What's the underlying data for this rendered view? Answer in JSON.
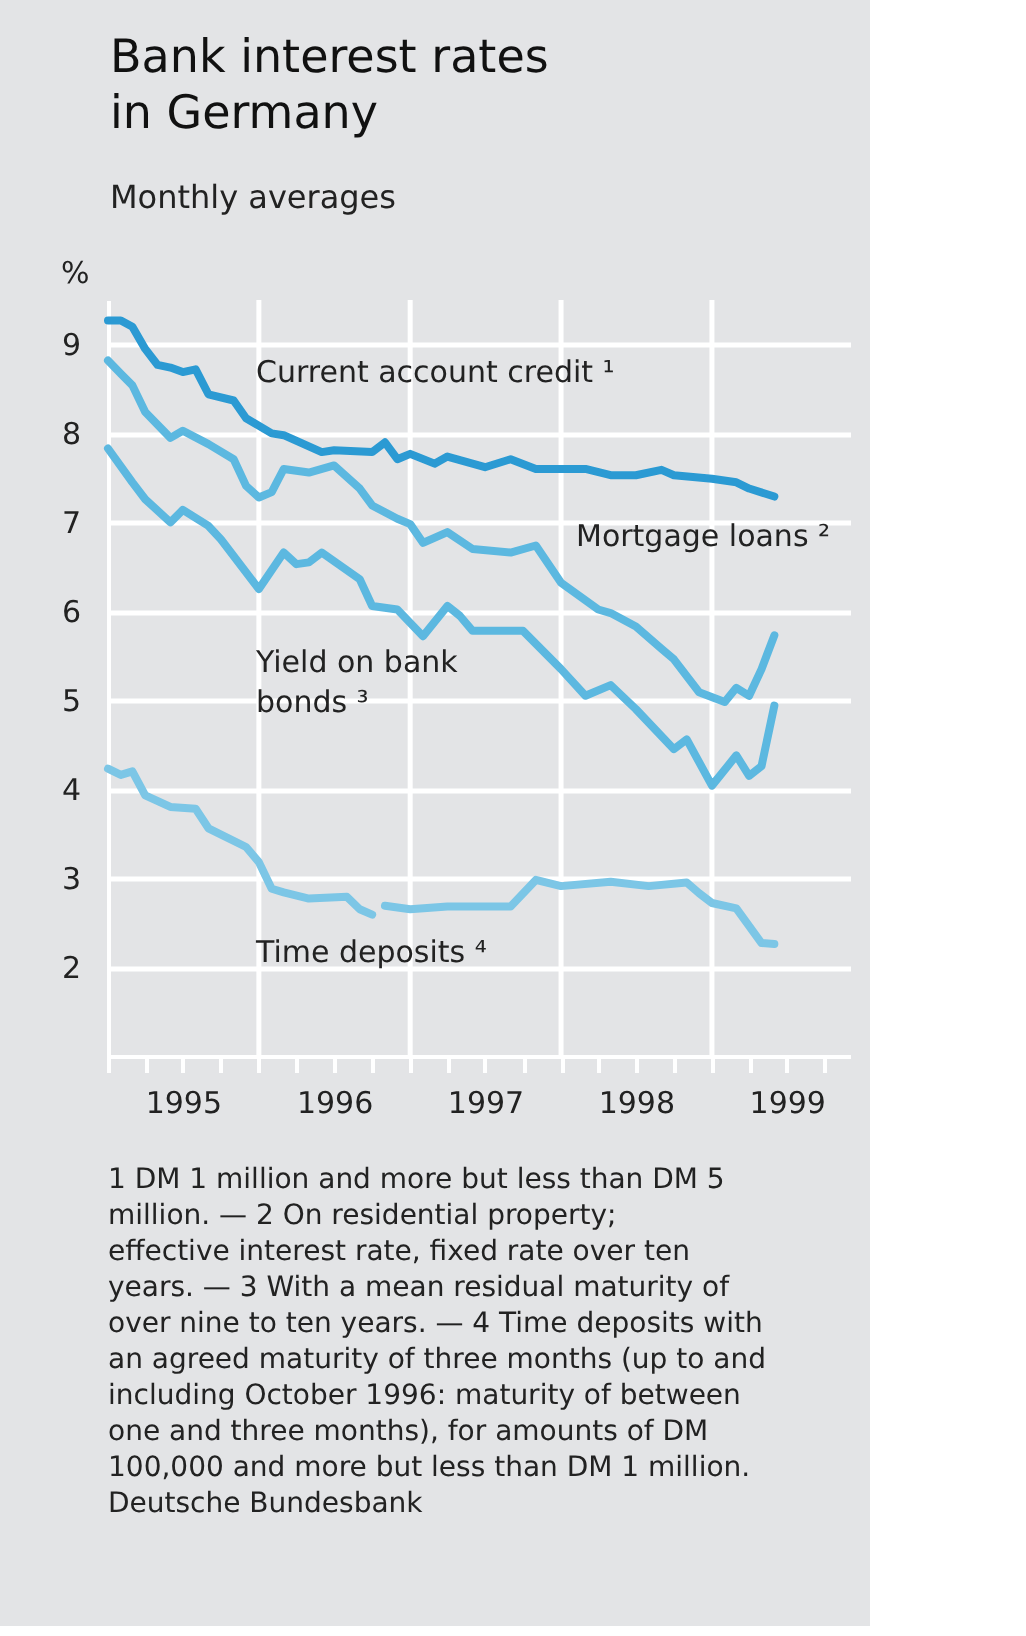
{
  "chart_data": {
    "type": "line",
    "title": "Bank interest rates in Germany",
    "subtitle": "Monthly averages",
    "ylabel": "%",
    "xlim": [
      "1995-01",
      "1999-12"
    ],
    "xticks": [
      {
        "value": "1995-01",
        "label": null
      },
      {
        "value": "1995-04",
        "label": null
      },
      {
        "value": "1995-07",
        "label": "1995"
      },
      {
        "value": "1995-10",
        "label": null
      },
      {
        "value": "1996-01",
        "label": null
      },
      {
        "value": "1996-04",
        "label": null
      },
      {
        "value": "1996-07",
        "label": "1996"
      },
      {
        "value": "1996-10",
        "label": null
      },
      {
        "value": "1997-01",
        "label": null
      },
      {
        "value": "1997-04",
        "label": null
      },
      {
        "value": "1997-07",
        "label": "1997"
      },
      {
        "value": "1997-10",
        "label": null
      },
      {
        "value": "1998-01",
        "label": null
      },
      {
        "value": "1998-04",
        "label": null
      },
      {
        "value": "1998-07",
        "label": "1998"
      },
      {
        "value": "1998-10",
        "label": null
      },
      {
        "value": "1999-01",
        "label": null
      },
      {
        "value": "1999-04",
        "label": null
      },
      {
        "value": "1999-07",
        "label": "1999"
      },
      {
        "value": "1999-10",
        "label": null
      }
    ],
    "ylim": [
      1,
      9.5
    ],
    "yticks": [
      2,
      3,
      4,
      5,
      6,
      7,
      8,
      9
    ],
    "grid": "y",
    "legend": false,
    "ref_lines": [
      {
        "axis": "x",
        "value": "1996-01",
        "label": null,
        "color": "#ffffff"
      },
      {
        "axis": "x",
        "value": "1997-01",
        "label": null,
        "color": "#ffffff"
      },
      {
        "axis": "x",
        "value": "1998-01",
        "label": null,
        "color": "#ffffff"
      },
      {
        "axis": "x",
        "value": "1999-01",
        "label": null,
        "color": "#ffffff"
      }
    ],
    "series": [
      {
        "name": "Current account credit ¹",
        "color": "#2b9ad3",
        "x": [
          "1995-01",
          "1995-02",
          "1995-03",
          "1995-04",
          "1995-05",
          "1995-06",
          "1995-07",
          "1995-08",
          "1995-09",
          "1995-11",
          "1995-12",
          "1996-02",
          "1996-03",
          "1996-06",
          "1996-07",
          "1996-10",
          "1996-11",
          "1996-12",
          "1997-01",
          "1997-03",
          "1997-04",
          "1997-07",
          "1997-09",
          "1997-11",
          "1998-03",
          "1998-05",
          "1998-07",
          "1998-09",
          "1998-10",
          "1999-01",
          "1999-03",
          "1999-04",
          "1999-06"
        ],
        "values": [
          9.27,
          9.27,
          9.2,
          8.95,
          8.77,
          8.74,
          8.69,
          8.72,
          8.44,
          8.37,
          8.17,
          8.0,
          7.98,
          7.79,
          7.81,
          7.79,
          7.9,
          7.71,
          7.77,
          7.66,
          7.74,
          7.62,
          7.71,
          7.6,
          7.6,
          7.53,
          7.53,
          7.59,
          7.53,
          7.49,
          7.45,
          7.38,
          7.29
        ]
      },
      {
        "name": "Mortgage loans ²",
        "color": "#5cb8e0",
        "x": [
          "1995-01",
          "1995-02",
          "1995-03",
          "1995-04",
          "1995-06",
          "1995-07",
          "1995-09",
          "1995-11",
          "1995-12",
          "1996-01",
          "1996-02",
          "1996-03",
          "1996-05",
          "1996-07",
          "1996-09",
          "1996-10",
          "1996-12",
          "1997-01",
          "1997-02",
          "1997-04",
          "1997-06",
          "1997-09",
          "1997-11",
          "1998-01",
          "1998-04",
          "1998-05",
          "1998-07",
          "1998-09",
          "1998-10",
          "1998-12",
          "1999-02",
          "1999-03",
          "1999-04",
          "1999-05",
          "1999-06"
        ],
        "values": [
          8.82,
          8.67,
          8.54,
          8.24,
          7.95,
          8.03,
          7.88,
          7.71,
          7.41,
          7.28,
          7.34,
          7.6,
          7.56,
          7.64,
          7.38,
          7.19,
          7.04,
          6.98,
          6.77,
          6.89,
          6.7,
          6.66,
          6.74,
          6.32,
          6.02,
          5.98,
          5.83,
          5.58,
          5.46,
          5.09,
          4.98,
          5.14,
          5.05,
          5.35,
          5.73
        ]
      },
      {
        "name": "Yield on bank bonds ³",
        "color": "#5cb8e0",
        "x": [
          "1995-01",
          "1995-03",
          "1995-04",
          "1995-06",
          "1995-07",
          "1995-09",
          "1995-10",
          "1996-01",
          "1996-03",
          "1996-04",
          "1996-05",
          "1996-06",
          "1996-09",
          "1996-10",
          "1996-12",
          "1997-02",
          "1997-04",
          "1997-05",
          "1997-06",
          "1997-08",
          "1997-10",
          "1998-01",
          "1998-03",
          "1998-05",
          "1998-07",
          "1998-10",
          "1998-11",
          "1999-01",
          "1999-03",
          "1999-04",
          "1999-05",
          "1999-06"
        ],
        "values": [
          7.83,
          7.45,
          7.26,
          7.0,
          7.14,
          6.96,
          6.81,
          6.25,
          6.66,
          6.53,
          6.55,
          6.66,
          6.36,
          6.06,
          6.02,
          5.72,
          6.06,
          5.95,
          5.78,
          5.78,
          5.78,
          5.35,
          5.05,
          5.17,
          4.9,
          4.45,
          4.56,
          4.04,
          4.38,
          4.15,
          4.26,
          4.94
        ]
      },
      {
        "name": "Time deposits ⁴",
        "color": "#7cc6e6",
        "x": [
          "1995-01",
          "1995-02",
          "1995-03",
          "1995-04",
          "1995-06",
          "1995-08",
          "1995-09",
          "1995-12",
          "1996-01",
          "1996-02",
          "1996-03",
          "1996-05",
          "1996-08",
          "1996-09",
          "1996-10",
          "1996-10-16",
          "1996-11",
          "1997-01",
          "1997-04",
          "1997-09",
          "1997-11",
          "1998-01",
          "1998-05",
          "1998-08",
          "1998-11",
          "1998-12",
          "1999-01",
          "1999-03",
          "1999-05",
          "1999-06"
        ],
        "values": [
          4.23,
          4.16,
          4.2,
          3.93,
          3.8,
          3.78,
          3.56,
          3.35,
          3.18,
          2.88,
          2.84,
          2.77,
          2.79,
          2.65,
          2.59,
          null,
          2.69,
          2.65,
          2.68,
          2.68,
          2.98,
          2.91,
          2.96,
          2.91,
          2.95,
          2.83,
          2.72,
          2.66,
          2.27,
          2.26
        ]
      }
    ],
    "annotations": [
      "1 DM 1 million and more but less than DM 5 million. — 2 On residential property; effective interest rate, fixed rate over ten years. — 3 With a mean residual maturity of over nine to ten years. — 4 Time deposits with an agreed maturity of three months (up to and including October 1996: maturity of between one and three months), for amounts of DM 100,000 and more but less than DM 1 million.",
      "Deutsche Bundesbank"
    ]
  }
}
